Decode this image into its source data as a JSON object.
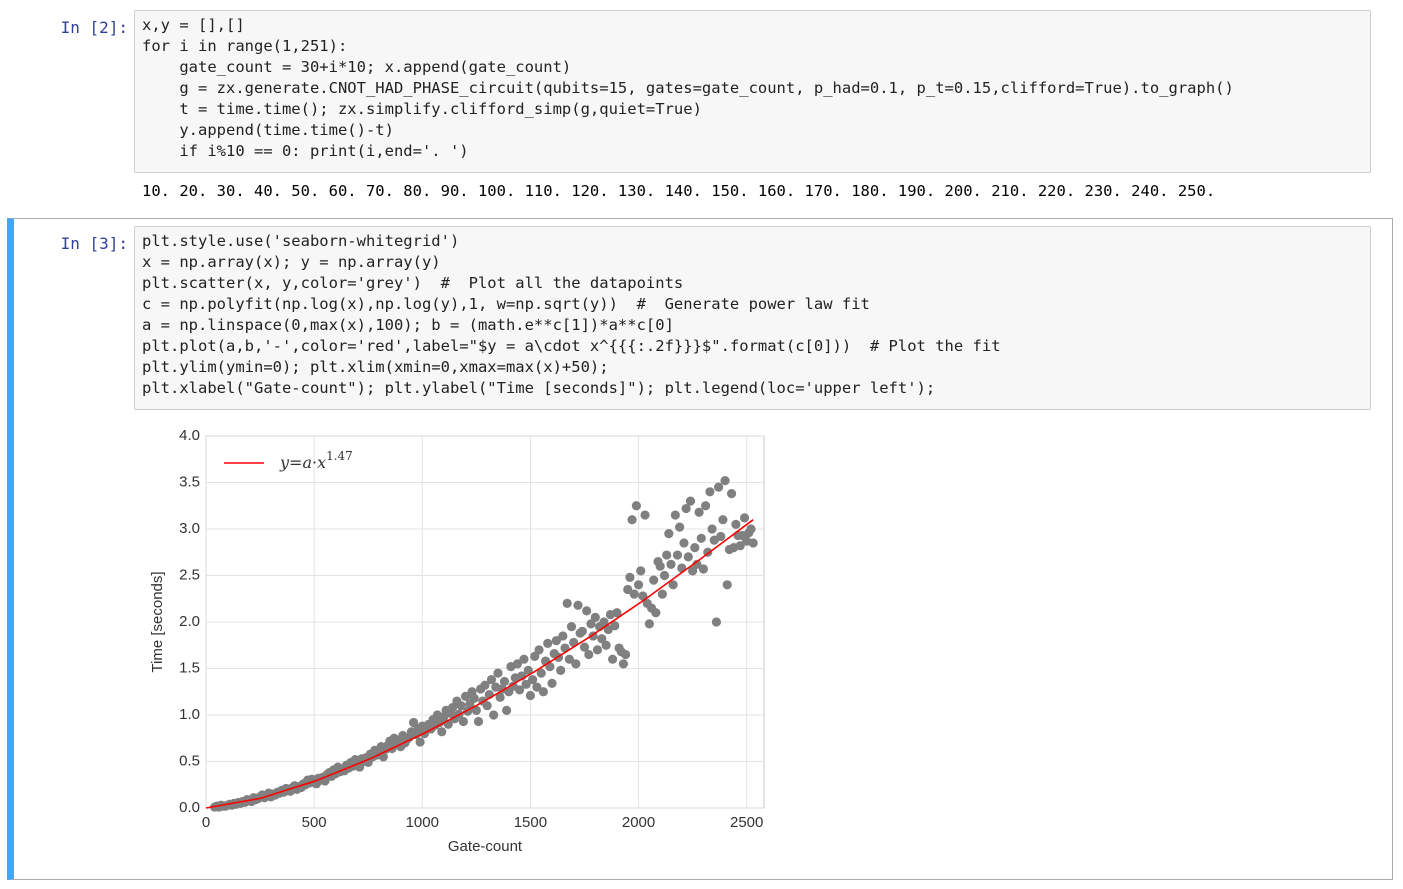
{
  "cells": [
    {
      "prompt": "In [2]:",
      "code": [
        "x,y = [],[]",
        "for i in range(1,251):",
        "    gate_count = 30+i*10; x.append(gate_count)",
        "    g = zx.generate.CNOT_HAD_PHASE_circuit(qubits=15, gates=gate_count, p_had=0.1, p_t=0.15,clifford=True).to_graph()",
        "    t = time.time(); zx.simplify.clifford_simp(g,quiet=True)",
        "    y.append(time.time()-t)",
        "    if i%10 == 0: print(i,end='. ')"
      ],
      "output": "10. 20. 30. 40. 50. 60. 70. 80. 90. 100. 110. 120. 130. 140. 150. 160. 170. 180. 190. 200. 210. 220. 230. 240. 250."
    },
    {
      "prompt": "In [3]:",
      "code": [
        "plt.style.use('seaborn-whitegrid')",
        "x = np.array(x); y = np.array(y)",
        "plt.scatter(x, y,color='grey')  #  Plot all the datapoints",
        "c = np.polyfit(np.log(x),np.log(y),1, w=np.sqrt(y))  #  Generate power law fit",
        "a = np.linspace(0,max(x),100); b = (math.e**c[1])*a**c[0]",
        "plt.plot(a,b,'-',color='red',label=\"$y = a\\cdot x^{{{:.2f}}}$\".format(c[0]))  # Plot the fit",
        "plt.ylim(ymin=0); plt.xlim(xmin=0,xmax=max(x)+50);",
        "plt.xlabel(\"Gate-count\"); plt.ylabel(\"Time [seconds]\"); plt.legend(loc='upper left');"
      ]
    }
  ],
  "chart_data": {
    "type": "scatter",
    "x_label": "Gate-count",
    "y_label": "Time [seconds]",
    "xlim": [
      0,
      2580
    ],
    "ylim": [
      0,
      4
    ],
    "xticks": [
      0,
      500,
      1000,
      1500,
      2000,
      2500
    ],
    "yticks": [
      {
        "value": 0,
        "label": "0.0"
      },
      {
        "value": 0.5,
        "label": "0.5"
      },
      {
        "value": 1,
        "label": "1.0"
      },
      {
        "value": 1.5,
        "label": "1.5"
      },
      {
        "value": 2,
        "label": "2.0"
      },
      {
        "value": 2.5,
        "label": "2.5"
      },
      {
        "value": 3,
        "label": "3.0"
      },
      {
        "value": 3.5,
        "label": "3.5"
      },
      {
        "value": 4,
        "label": "4.0"
      }
    ],
    "grid": true,
    "legend": "upper left",
    "color": "#808080",
    "x": [
      40,
      50,
      60,
      70,
      80,
      90,
      100,
      110,
      120,
      130,
      140,
      150,
      160,
      170,
      180,
      190,
      200,
      210,
      220,
      230,
      240,
      250,
      260,
      270,
      280,
      290,
      300,
      310,
      320,
      330,
      340,
      350,
      360,
      370,
      380,
      390,
      400,
      410,
      420,
      430,
      440,
      450,
      460,
      470,
      480,
      490,
      500,
      510,
      520,
      530,
      540,
      550,
      560,
      570,
      580,
      590,
      600,
      610,
      620,
      630,
      640,
      650,
      660,
      670,
      680,
      690,
      700,
      710,
      720,
      730,
      740,
      750,
      760,
      770,
      780,
      790,
      800,
      810,
      820,
      830,
      840,
      850,
      860,
      870,
      880,
      890,
      900,
      910,
      920,
      930,
      940,
      950,
      960,
      970,
      980,
      990,
      1000,
      1010,
      1020,
      1030,
      1040,
      1050,
      1060,
      1070,
      1080,
      1090,
      1100,
      1110,
      1120,
      1130,
      1140,
      1150,
      1160,
      1170,
      1180,
      1190,
      1200,
      1210,
      1220,
      1230,
      1240,
      1250,
      1260,
      1270,
      1280,
      1290,
      1300,
      1310,
      1320,
      1330,
      1340,
      1350,
      1360,
      1370,
      1380,
      1390,
      1400,
      1410,
      1420,
      1430,
      1440,
      1450,
      1460,
      1470,
      1480,
      1490,
      1500,
      1510,
      1520,
      1530,
      1540,
      1550,
      1560,
      1570,
      1580,
      1590,
      1600,
      1610,
      1620,
      1630,
      1640,
      1650,
      1660,
      1670,
      1680,
      1690,
      1700,
      1710,
      1720,
      1730,
      1740,
      1750,
      1760,
      1770,
      1780,
      1790,
      1800,
      1810,
      1820,
      1830,
      1840,
      1850,
      1860,
      1870,
      1880,
      1890,
      1900,
      1910,
      1920,
      1930,
      1940,
      1950,
      1960,
      1970,
      1980,
      1990,
      2000,
      2010,
      2020,
      2030,
      2040,
      2050,
      2060,
      2070,
      2080,
      2090,
      2100,
      2110,
      2120,
      2130,
      2140,
      2150,
      2160,
      2170,
      2180,
      2190,
      2200,
      2210,
      2220,
      2230,
      2240,
      2250,
      2260,
      2270,
      2280,
      2290,
      2300,
      2310,
      2320,
      2330,
      2340,
      2350,
      2360,
      2370,
      2380,
      2390,
      2400,
      2410,
      2420,
      2430,
      2440,
      2450,
      2460,
      2470,
      2480,
      2490,
      2500,
      2510,
      2520,
      2530
    ],
    "values": [
      0.01,
      0.02,
      0.01,
      0.03,
      0.02,
      0.02,
      0.03,
      0.04,
      0.03,
      0.05,
      0.04,
      0.06,
      0.05,
      0.07,
      0.06,
      0.09,
      0.08,
      0.07,
      0.11,
      0.09,
      0.1,
      0.12,
      0.14,
      0.11,
      0.13,
      0.16,
      0.12,
      0.15,
      0.14,
      0.17,
      0.16,
      0.19,
      0.17,
      0.21,
      0.2,
      0.18,
      0.22,
      0.24,
      0.2,
      0.23,
      0.22,
      0.26,
      0.25,
      0.3,
      0.27,
      0.31,
      0.28,
      0.26,
      0.32,
      0.3,
      0.33,
      0.29,
      0.36,
      0.38,
      0.34,
      0.41,
      0.37,
      0.44,
      0.39,
      0.42,
      0.4,
      0.46,
      0.43,
      0.49,
      0.45,
      0.52,
      0.47,
      0.44,
      0.53,
      0.5,
      0.54,
      0.49,
      0.58,
      0.55,
      0.62,
      0.57,
      0.6,
      0.66,
      0.55,
      0.63,
      0.67,
      0.72,
      0.64,
      0.75,
      0.69,
      0.71,
      0.66,
      0.78,
      0.7,
      0.74,
      0.76,
      0.82,
      0.92,
      0.79,
      0.85,
      0.71,
      0.88,
      0.8,
      0.86,
      0.9,
      0.85,
      0.95,
      0.89,
      1.0,
      0.92,
      0.82,
      0.98,
      1.05,
      0.9,
      1.02,
      1.08,
      0.96,
      1.15,
      1.01,
      1.1,
      0.93,
      1.2,
      1.04,
      1.12,
      1.25,
      1.18,
      1.05,
      0.93,
      1.28,
      1.15,
      1.32,
      1.1,
      1.22,
      1.38,
      1.0,
      1.3,
      1.45,
      1.19,
      1.28,
      1.36,
      1.05,
      1.25,
      1.52,
      1.31,
      1.4,
      1.55,
      1.27,
      1.42,
      1.6,
      1.33,
      1.48,
      1.21,
      1.38,
      1.63,
      1.3,
      1.7,
      1.45,
      1.25,
      1.58,
      1.77,
      1.52,
      1.34,
      1.66,
      1.8,
      1.62,
      1.48,
      1.85,
      1.72,
      2.2,
      1.6,
      1.95,
      1.78,
      1.55,
      2.18,
      1.88,
      1.9,
      1.73,
      2.12,
      1.65,
      1.98,
      1.85,
      2.05,
      1.7,
      1.95,
      1.82,
      2.0,
      1.75,
      1.92,
      2.08,
      1.6,
      1.96,
      2.1,
      1.72,
      1.68,
      1.55,
      1.65,
      2.35,
      2.48,
      3.1,
      2.3,
      3.25,
      2.4,
      2.55,
      2.28,
      3.15,
      2.2,
      1.98,
      2.15,
      2.45,
      2.1,
      2.65,
      2.6,
      2.3,
      2.5,
      2.72,
      2.95,
      2.62,
      2.4,
      3.15,
      2.72,
      3.02,
      2.58,
      2.85,
      3.22,
      2.7,
      3.3,
      2.55,
      2.8,
      2.62,
      3.18,
      2.9,
      2.57,
      3.25,
      2.75,
      3.4,
      3.0,
      2.88,
      2.0,
      3.45,
      2.92,
      3.1,
      3.52,
      2.4,
      2.78,
      3.38,
      2.8,
      3.05,
      2.93,
      2.82,
      2.93,
      3.12,
      2.87,
      2.96,
      3.0,
      2.85
    ],
    "fit": {
      "label": "y=a·x",
      "exponent": "1.47",
      "color": "#ff0000",
      "x": [
        0,
        253,
        506,
        759,
        1012,
        1265,
        1518,
        1771,
        2024,
        2277,
        2530
      ],
      "values": [
        0,
        0.105,
        0.291,
        0.529,
        0.808,
        1.12,
        1.464,
        1.835,
        2.234,
        2.661,
        3.1
      ]
    }
  }
}
